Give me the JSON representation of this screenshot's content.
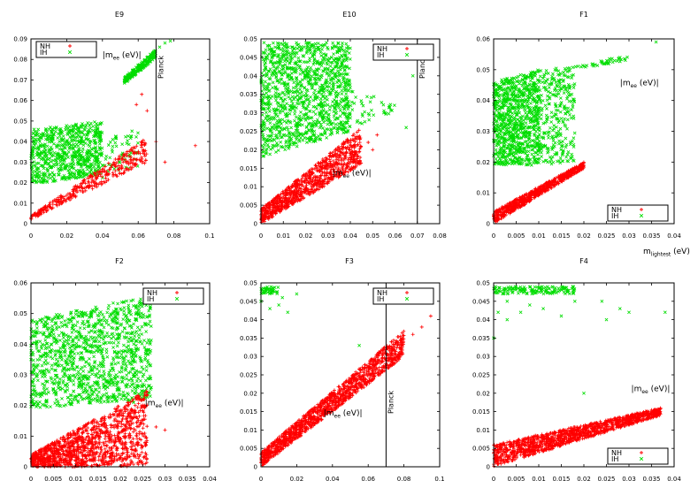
{
  "colors": {
    "nh": "#ff0000",
    "ih": "#00dd00",
    "axis": "#000000"
  },
  "xaxis_label": {
    "main": "m",
    "sub": "lightest",
    "unit": " (eV)"
  },
  "chart_data": [
    {
      "type": "scatter",
      "title": "E9",
      "xlim": [
        0,
        0.1
      ],
      "ylim": [
        0,
        0.09
      ],
      "xticks": [
        "0",
        "0.02",
        "0.04",
        "0.06",
        "0.08",
        "0.1"
      ],
      "yticks": [
        "0",
        "0.01",
        "0.02",
        "0.03",
        "0.04",
        "0.05",
        "0.06",
        "0.07",
        "0.08",
        "0.09"
      ],
      "planck": 0.07,
      "planck_label": "Planck",
      "annotation": {
        "text_main": "|m",
        "text_sub": "ee",
        "text_tail": " (eV)|",
        "x": 0.04,
        "y": 0.081
      },
      "legend": {
        "loc": "top-left",
        "entries": [
          "NH",
          "IH"
        ]
      },
      "series": [
        {
          "name": "NH",
          "regions": [
            {
              "shape": "band",
              "x": [
                0.0,
                0.065
              ],
              "y0": [
                0.002,
                0.03
              ],
              "y1": [
                0.004,
                0.042
              ],
              "n": 350
            },
            {
              "shape": "points",
              "pts": [
                [
                  0.062,
                  0.063
                ],
                [
                  0.065,
                  0.055
                ],
                [
                  0.07,
                  0.04
                ],
                [
                  0.075,
                  0.03
                ],
                [
                  0.092,
                  0.038
                ],
                [
                  0.059,
                  0.058
                ]
              ]
            }
          ]
        },
        {
          "name": "IH",
          "regions": [
            {
              "shape": "band",
              "x": [
                0.0,
                0.04
              ],
              "y0": [
                0.019,
                0.024
              ],
              "y1": [
                0.046,
                0.05
              ],
              "n": 700
            },
            {
              "shape": "band",
              "x": [
                0.04,
                0.06
              ],
              "y0": [
                0.022,
                0.028
              ],
              "y1": [
                0.042,
                0.048
              ],
              "n": 60
            },
            {
              "shape": "band",
              "x": [
                0.052,
                0.07
              ],
              "y0": [
                0.068,
                0.081
              ],
              "y1": [
                0.071,
                0.085
              ],
              "n": 200
            },
            {
              "shape": "points",
              "pts": [
                [
                  0.075,
                  0.088
                ],
                [
                  0.078,
                  0.089
                ],
                [
                  0.072,
                  0.086
                ]
              ]
            }
          ]
        }
      ]
    },
    {
      "type": "scatter",
      "title": "E10",
      "xlim": [
        0,
        0.08
      ],
      "ylim": [
        0,
        0.05
      ],
      "xticks": [
        "0",
        "0.01",
        "0.02",
        "0.03",
        "0.04",
        "0.05",
        "0.06",
        "0.07",
        "0.08"
      ],
      "yticks": [
        "0",
        "0.005",
        "0.01",
        "0.015",
        "0.02",
        "0.025",
        "0.03",
        "0.035",
        "0.04",
        "0.045",
        "0.05"
      ],
      "planck": 0.07,
      "planck_label": "Planck",
      "annotation": {
        "text_main": "|m",
        "text_sub": "ee",
        "text_tail": " (eV)|",
        "x": 0.032,
        "y": 0.013
      },
      "legend": {
        "loc": "top-right",
        "entries": [
          "NH",
          "IH"
        ]
      },
      "series": [
        {
          "name": "NH",
          "regions": [
            {
              "shape": "band",
              "x": [
                0.0,
                0.045
              ],
              "y0": [
                0.0,
                0.016
              ],
              "y1": [
                0.004,
                0.026
              ],
              "n": 900
            },
            {
              "shape": "points",
              "pts": [
                [
                  0.048,
                  0.022
                ],
                [
                  0.05,
                  0.02
                ],
                [
                  0.052,
                  0.024
                ]
              ]
            }
          ]
        },
        {
          "name": "IH",
          "regions": [
            {
              "shape": "band",
              "x": [
                0.0,
                0.04
              ],
              "y0": [
                0.018,
                0.025
              ],
              "y1": [
                0.049,
                0.049
              ],
              "n": 1200
            },
            {
              "shape": "band",
              "x": [
                0.04,
                0.06
              ],
              "y0": [
                0.026,
                0.03
              ],
              "y1": [
                0.036,
                0.033
              ],
              "n": 40
            },
            {
              "shape": "points",
              "pts": [
                [
                  0.068,
                  0.04
                ],
                [
                  0.065,
                  0.026
                ],
                [
                  0.055,
                  0.03
                ]
              ]
            }
          ]
        }
      ]
    },
    {
      "type": "scatter",
      "title": "F1",
      "xlim": [
        0,
        0.04
      ],
      "ylim": [
        0,
        0.06
      ],
      "xticks": [
        "0",
        "0.005",
        "0.01",
        "0.015",
        "0.02",
        "0.025",
        "0.03",
        "0.035",
        "0.04"
      ],
      "yticks": [
        "0",
        "0.01",
        "0.02",
        "0.03",
        "0.04",
        "0.05",
        "0.06"
      ],
      "planck": null,
      "annotation": {
        "text_main": "|m",
        "text_sub": "ee",
        "text_tail": " (eV)|",
        "x": 0.028,
        "y": 0.045
      },
      "legend": {
        "loc": "bottom-right",
        "entries": [
          "NH",
          "IH"
        ]
      },
      "series": [
        {
          "name": "NH",
          "regions": [
            {
              "shape": "band",
              "x": [
                0.0,
                0.02
              ],
              "y0": [
                0.0,
                0.018
              ],
              "y1": [
                0.004,
                0.02
              ],
              "n": 700
            }
          ]
        },
        {
          "name": "IH",
          "regions": [
            {
              "shape": "band",
              "x": [
                0.0,
                0.01
              ],
              "y0": [
                0.019,
                0.019
              ],
              "y1": [
                0.046,
                0.05
              ],
              "n": 900
            },
            {
              "shape": "band",
              "x": [
                0.01,
                0.018
              ],
              "y0": [
                0.019,
                0.02
              ],
              "y1": [
                0.05,
                0.051
              ],
              "n": 300
            },
            {
              "shape": "band",
              "x": [
                0.018,
                0.03
              ],
              "y0": [
                0.05,
                0.053
              ],
              "y1": [
                0.051,
                0.055
              ],
              "n": 40
            },
            {
              "shape": "points",
              "pts": [
                [
                  0.036,
                  0.059
                ],
                [
                  0.028,
                  0.054
                ],
                [
                  0.025,
                  0.052
                ]
              ]
            }
          ]
        }
      ]
    },
    {
      "type": "scatter",
      "title": "F2",
      "xlim": [
        0,
        0.04
      ],
      "ylim": [
        0,
        0.06
      ],
      "xticks": [
        "0",
        "0.005",
        "0.01",
        "0.015",
        "0.02",
        "0.025",
        "0.03",
        "0.035",
        "0.04"
      ],
      "yticks": [
        "0",
        "0.01",
        "0.02",
        "0.03",
        "0.04",
        "0.05",
        "0.06"
      ],
      "planck": null,
      "annotation": {
        "text_main": "|m",
        "text_sub": "ee",
        "text_tail": " (eV)|",
        "x": 0.0255,
        "y": 0.02
      },
      "legend": {
        "loc": "top-right",
        "entries": [
          "NH",
          "IH"
        ]
      },
      "series": [
        {
          "name": "NH",
          "regions": [
            {
              "shape": "band",
              "x": [
                0.0,
                0.026
              ],
              "y0": [
                0.0,
                0.0
              ],
              "y1": [
                0.004,
                0.025
              ],
              "n": 1300
            },
            {
              "shape": "points",
              "pts": [
                [
                  0.03,
                  0.012
                ],
                [
                  0.028,
                  0.013
                ],
                [
                  0.024,
                  0.008
                ]
              ]
            }
          ]
        },
        {
          "name": "IH",
          "regions": [
            {
              "shape": "band",
              "x": [
                0.0,
                0.027
              ],
              "y0": [
                0.019,
                0.022
              ],
              "y1": [
                0.048,
                0.056
              ],
              "n": 1200
            },
            {
              "shape": "points",
              "pts": [
                [
                  0.0,
                  0.035
                ],
                [
                  0.021,
                  0.022
                ],
                [
                  0.023,
                  0.021
                ]
              ]
            }
          ]
        }
      ]
    },
    {
      "type": "scatter",
      "title": "F3",
      "xlim": [
        0,
        0.1
      ],
      "ylim": [
        0,
        0.05
      ],
      "xticks": [
        "0",
        "0.02",
        "0.04",
        "0.06",
        "0.08",
        "0.1"
      ],
      "yticks": [
        "0",
        "0.005",
        "0.01",
        "0.015",
        "0.02",
        "0.025",
        "0.03",
        "0.035",
        "0.04",
        "0.045",
        "0.05"
      ],
      "planck": 0.07,
      "planck_label": "Planck",
      "annotation": {
        "text_main": "|m",
        "text_sub": "ee",
        "text_tail": " (eV)|",
        "x": 0.035,
        "y": 0.014
      },
      "legend": {
        "loc": "top-right",
        "entries": [
          "NH",
          "IH"
        ]
      },
      "series": [
        {
          "name": "NH",
          "regions": [
            {
              "shape": "band",
              "x": [
                0.0,
                0.08
              ],
              "y0": [
                0.0,
                0.03
              ],
              "y1": [
                0.004,
                0.037
              ],
              "n": 1300
            },
            {
              "shape": "points",
              "pts": [
                [
                  0.09,
                  0.038
                ],
                [
                  0.095,
                  0.041
                ],
                [
                  0.085,
                  0.036
                ]
              ]
            }
          ]
        },
        {
          "name": "IH",
          "regions": [
            {
              "shape": "band",
              "x": [
                0.0,
                0.01
              ],
              "y0": [
                0.047,
                0.047
              ],
              "y1": [
                0.049,
                0.049
              ],
              "n": 40
            },
            {
              "shape": "points",
              "pts": [
                [
                  0.0,
                  0.045
                ],
                [
                  0.005,
                  0.043
                ],
                [
                  0.01,
                  0.044
                ],
                [
                  0.015,
                  0.042
                ],
                [
                  0.02,
                  0.047
                ],
                [
                  0.055,
                  0.033
                ],
                [
                  0.012,
                  0.046
                ]
              ]
            }
          ]
        }
      ]
    },
    {
      "type": "scatter",
      "title": "F4",
      "xlim": [
        0,
        0.04
      ],
      "ylim": [
        0,
        0.05
      ],
      "xticks": [
        "0",
        "0.005",
        "0.01",
        "0.015",
        "0.02",
        "0.025",
        "0.03",
        "0.035",
        "0.04"
      ],
      "yticks": [
        "0",
        "0.005",
        "0.01",
        "0.015",
        "0.02",
        "0.025",
        "0.03",
        "0.035",
        "0.04",
        "0.045",
        "0.05"
      ],
      "planck": null,
      "annotation": {
        "text_main": "|m",
        "text_sub": "ee",
        "text_tail": " (eV)|",
        "x": 0.0305,
        "y": 0.0205
      },
      "legend": {
        "loc": "bottom-right",
        "entries": [
          "NH",
          "IH"
        ]
      },
      "series": [
        {
          "name": "NH",
          "regions": [
            {
              "shape": "band",
              "x": [
                0.0,
                0.037
              ],
              "y0": [
                0.0,
                0.014
              ],
              "y1": [
                0.006,
                0.016
              ],
              "n": 1300
            }
          ]
        },
        {
          "name": "IH",
          "regions": [
            {
              "shape": "band",
              "x": [
                0.0,
                0.018
              ],
              "y0": [
                0.047,
                0.047
              ],
              "y1": [
                0.049,
                0.049
              ],
              "n": 150
            },
            {
              "shape": "points",
              "pts": [
                [
                  0.001,
                  0.042
                ],
                [
                  0.003,
                  0.04
                ],
                [
                  0.006,
                  0.042
                ],
                [
                  0.008,
                  0.044
                ],
                [
                  0.011,
                  0.043
                ],
                [
                  0.015,
                  0.041
                ],
                [
                  0.018,
                  0.045
                ],
                [
                  0.024,
                  0.045
                ],
                [
                  0.025,
                  0.04
                ],
                [
                  0.028,
                  0.043
                ],
                [
                  0.03,
                  0.042
                ],
                [
                  0.038,
                  0.042
                ],
                [
                  0.02,
                  0.02
                ],
                [
                  0.0,
                  0.035
                ],
                [
                  0.003,
                  0.045
                ]
              ]
            }
          ]
        }
      ]
    }
  ]
}
